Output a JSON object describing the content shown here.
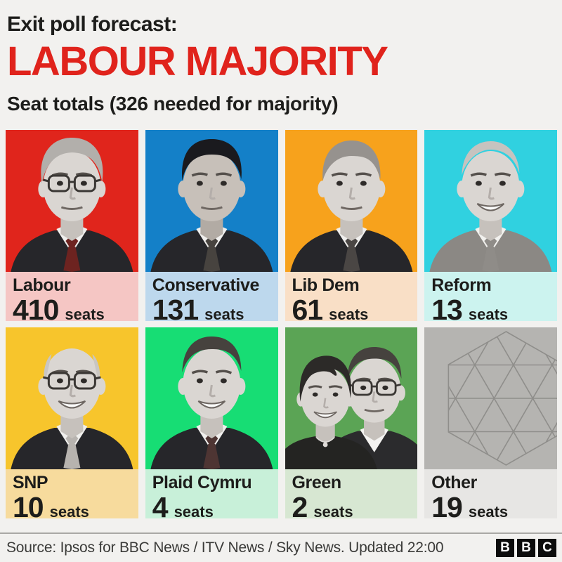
{
  "header": {
    "kicker": "Exit poll forecast:",
    "headline": "LABOUR MAJORITY",
    "headline_color": "#e0231c",
    "subtitle": "Seat totals (326 needed for majority)"
  },
  "seats_unit": "seats",
  "majority_needed": 326,
  "parties": [
    {
      "name": "Labour",
      "seats": "410",
      "photo_bg": "#e0251c",
      "label_bg": "#f5c6c4",
      "portrait": "keir-starmer"
    },
    {
      "name": "Conservative",
      "seats": "131",
      "photo_bg": "#1480c8",
      "label_bg": "#bdd8ed",
      "portrait": "rishi-sunak"
    },
    {
      "name": "Lib Dem",
      "seats": "61",
      "photo_bg": "#f7a21c",
      "label_bg": "#f9dfc6",
      "portrait": "ed-davey"
    },
    {
      "name": "Reform",
      "seats": "13",
      "photo_bg": "#30d1e0",
      "label_bg": "#ccf3ef",
      "portrait": "nigel-farage"
    },
    {
      "name": "SNP",
      "seats": "10",
      "photo_bg": "#f7c52c",
      "label_bg": "#f7db9d",
      "portrait": "john-swinney"
    },
    {
      "name": "Plaid Cymru",
      "seats": "4",
      "photo_bg": "#17dd74",
      "label_bg": "#c8f0d9",
      "portrait": "plaid-leader"
    },
    {
      "name": "Green",
      "seats": "2",
      "photo_bg": "#5ba455",
      "label_bg": "#d7e7d2",
      "portrait": "green-co-leaders"
    },
    {
      "name": "Other",
      "seats": "19",
      "photo_bg": "#b5b4b1",
      "label_bg": "#e7e6e4",
      "portrait": "triangle-pattern"
    }
  ],
  "footer": {
    "source": "Source: Ipsos for BBC News / ITV News / Sky News. Updated 22:00",
    "logo_letters": [
      "B",
      "B",
      "C"
    ]
  },
  "chart_data": {
    "type": "table",
    "title": "Exit poll forecast: LABOUR MAJORITY",
    "subtitle": "Seat totals (326 needed for majority)",
    "categories": [
      "Labour",
      "Conservative",
      "Lib Dem",
      "Reform",
      "SNP",
      "Plaid Cymru",
      "Green",
      "Other"
    ],
    "values": [
      410,
      131,
      61,
      13,
      10,
      4,
      2,
      19
    ],
    "annotations": [
      "326 needed for majority",
      "Updated 22:00"
    ]
  }
}
